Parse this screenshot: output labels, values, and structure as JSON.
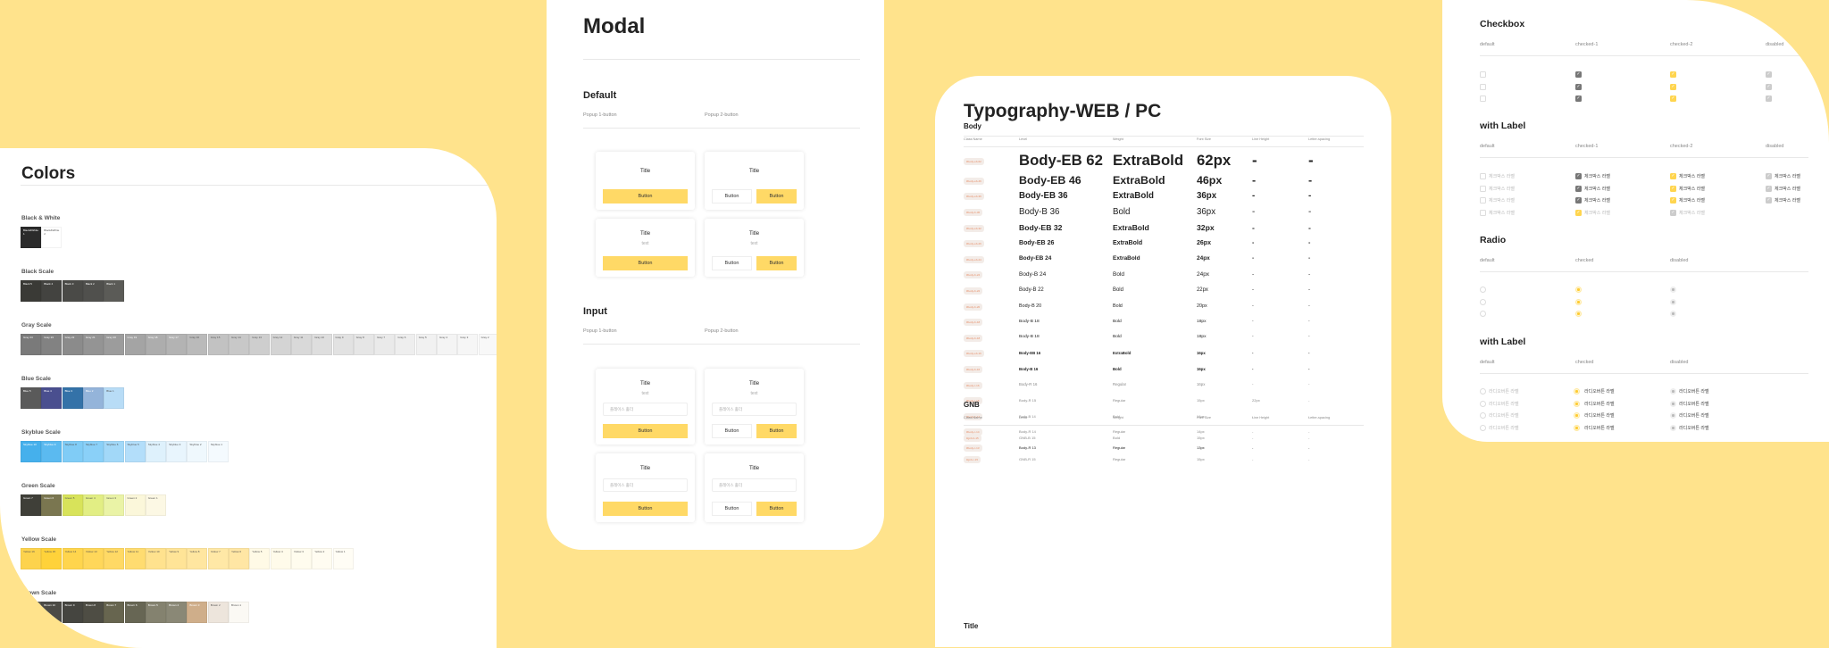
{
  "colors": {
    "title": "Colors",
    "sections": [
      {
        "name": "Black & White",
        "swatches": [
          {
            "label": "Black&White 1",
            "hex": "#2b2b2b"
          },
          {
            "label": "Black&White 2",
            "hex": "#ffffff"
          }
        ]
      },
      {
        "name": "Black Scale",
        "swatches": [
          {
            "label": "Black 5",
            "hex": "#3a3a36"
          },
          {
            "label": "Black 4",
            "hex": "#434340"
          },
          {
            "label": "Black 3",
            "hex": "#4a4a47"
          },
          {
            "label": "Black 2",
            "hex": "#50504d"
          },
          {
            "label": "Black 1",
            "hex": "#5b5b57"
          }
        ]
      },
      {
        "name": "Gray Scale",
        "swatches": [
          {
            "label": "Gray 24",
            "hex": "#7a7a7a"
          },
          {
            "label": "Gray 23",
            "hex": "#828282"
          },
          {
            "label": "Gray 22",
            "hex": "#8b8b8b"
          },
          {
            "label": "Gray 21",
            "hex": "#949494"
          },
          {
            "label": "Gray 20",
            "hex": "#9c9c9c"
          },
          {
            "label": "Gray 19",
            "hex": "#a4a4a4"
          },
          {
            "label": "Gray 18",
            "hex": "#adadad"
          },
          {
            "label": "Gray 17",
            "hex": "#b3b3b3"
          },
          {
            "label": "Gray 16",
            "hex": "#bababa"
          },
          {
            "label": "Gray 15",
            "hex": "#c2c2c2"
          },
          {
            "label": "Gray 14",
            "hex": "#c8c8c8"
          },
          {
            "label": "Gray 13",
            "hex": "#cecece"
          },
          {
            "label": "Gray 12",
            "hex": "#d4d4d4"
          },
          {
            "label": "Gray 11",
            "hex": "#d9d9d9"
          },
          {
            "label": "Gray 10",
            "hex": "#dedede"
          },
          {
            "label": "Gray 9",
            "hex": "#e2e2e2"
          },
          {
            "label": "Gray 8",
            "hex": "#e6e6e6"
          },
          {
            "label": "Gray 7",
            "hex": "#eaeaea"
          },
          {
            "label": "Gray 6",
            "hex": "#eeeeee"
          },
          {
            "label": "Gray 5",
            "hex": "#f1f1f1"
          },
          {
            "label": "Gray 4",
            "hex": "#f4f4f4"
          },
          {
            "label": "Gray 3",
            "hex": "#f6f6f6"
          },
          {
            "label": "Gray 2",
            "hex": "#f8f8f8"
          },
          {
            "label": "Gray 1",
            "hex": "#fafafa"
          }
        ]
      },
      {
        "name": "Blue Scale",
        "swatches": [
          {
            "label": "Blue 5",
            "hex": "#5a5a5a"
          },
          {
            "label": "Blue 4",
            "hex": "#4a4f8f"
          },
          {
            "label": "Blue 3",
            "hex": "#3472a8"
          },
          {
            "label": "Blue 2",
            "hex": "#94b4da"
          },
          {
            "label": "Blue 1",
            "hex": "#b8dcf6"
          }
        ]
      },
      {
        "name": "Skyblue Scale",
        "swatches": [
          {
            "label": "Skyblue 10",
            "hex": "#45b0ec"
          },
          {
            "label": "Skyblue 9",
            "hex": "#5bbaf0"
          },
          {
            "label": "Skyblue 8",
            "hex": "#80ccf6"
          },
          {
            "label": "Skyblue 7",
            "hex": "#8ad0f8"
          },
          {
            "label": "Skyblue 6",
            "hex": "#a2d8f8"
          },
          {
            "label": "Skyblue 5",
            "hex": "#b3defa"
          },
          {
            "label": "Skyblue 4",
            "hex": "#def1fc"
          },
          {
            "label": "Skyblue 3",
            "hex": "#e8f5fd"
          },
          {
            "label": "Skyblue 2",
            "hex": "#eff8fd"
          },
          {
            "label": "Skyblue 1",
            "hex": "#f4fafe"
          }
        ]
      },
      {
        "name": "Green Scale",
        "swatches": [
          {
            "label": "Green 7",
            "hex": "#3f3f38"
          },
          {
            "label": "Green 6",
            "hex": "#7a7650"
          },
          {
            "label": "Green 5",
            "hex": "#d8e35a"
          },
          {
            "label": "Green 4",
            "hex": "#e2ee84"
          },
          {
            "label": "Green 3",
            "hex": "#eaf3a6"
          },
          {
            "label": "Green 2",
            "hex": "#fbf7da"
          },
          {
            "label": "Green 1",
            "hex": "#fcf8e4"
          }
        ]
      },
      {
        "name": "Yellow Scale",
        "swatches": [
          {
            "label": "Yellow 16",
            "hex": "#fdd34d"
          },
          {
            "label": "Yellow 15",
            "hex": "#ffd23a"
          },
          {
            "label": "Yellow 14",
            "hex": "#ffd54d"
          },
          {
            "label": "Yellow 13",
            "hex": "#ffd75a"
          },
          {
            "label": "Yellow 12",
            "hex": "#ffd965"
          },
          {
            "label": "Yellow 11",
            "hex": "#ffdc70"
          },
          {
            "label": "Yellow 10",
            "hex": "#ffe28e"
          },
          {
            "label": "Yellow 9",
            "hex": "#ffe497"
          },
          {
            "label": "Yellow 8",
            "hex": "#ffe6a0"
          },
          {
            "label": "Yellow 7",
            "hex": "#ffe8a6"
          },
          {
            "label": "Yellow 6",
            "hex": "#ffe6a4"
          },
          {
            "label": "Yellow 5",
            "hex": "#fffae6"
          },
          {
            "label": "Yellow 4",
            "hex": "#fffbea"
          },
          {
            "label": "Yellow 3",
            "hex": "#fffcee"
          },
          {
            "label": "Yellow 2",
            "hex": "#fffcf1"
          },
          {
            "label": "Yellow 1",
            "hex": "#fffdf5"
          }
        ]
      },
      {
        "name": "Brown Scale",
        "swatches": [
          {
            "label": "Brown 11",
            "hex": "#5a5850"
          },
          {
            "label": "Brown 10",
            "hex": "#4c4b46"
          },
          {
            "label": "Brown 9",
            "hex": "#454540"
          },
          {
            "label": "Brown 8",
            "hex": "#4e4d44"
          },
          {
            "label": "Brown 7",
            "hex": "#67654f"
          },
          {
            "label": "Brown 6",
            "hex": "#676654"
          },
          {
            "label": "Brown 5",
            "hex": "#84826f"
          },
          {
            "label": "Brown 4",
            "hex": "#8a8876"
          },
          {
            "label": "Brown 3",
            "hex": "#cfae8a"
          },
          {
            "label": "Brown 2",
            "hex": "#ede5dc"
          },
          {
            "label": "Brown 1",
            "hex": "#fbf9f4"
          }
        ]
      }
    ]
  },
  "modal": {
    "title": "Modal",
    "sections": [
      {
        "name": "Default",
        "col1": "Popup 1-button",
        "col2": "Popup 2-button"
      },
      {
        "name": "Input",
        "col1": "Popup 1-button",
        "col2": "Popup 2-button"
      }
    ],
    "card_title": "Title",
    "card_text": "text",
    "button": "Button",
    "placeholder": "플레이스 홀더"
  },
  "typography": {
    "title": "Typography-WEB / PC",
    "headers": [
      "Class Name",
      "Level",
      "Weight",
      "Font Size",
      "Line Height",
      "Letter-spacing"
    ],
    "body": {
      "name": "Body",
      "rows": [
        {
          "cls": "#body-eb-62",
          "level": "Body-EB 62",
          "weight": "ExtraBold",
          "size": "62px",
          "lh": "-",
          "ls": "-",
          "bold": true
        },
        {
          "cls": "#body-eb-46",
          "level": "Body-EB 46",
          "weight": "ExtraBold",
          "size": "46px",
          "lh": "-",
          "ls": "-",
          "bold": true
        },
        {
          "cls": "#body-eb-36",
          "level": "Body-EB 36",
          "weight": "ExtraBold",
          "size": "36px",
          "lh": "-",
          "ls": "-",
          "bold": true
        },
        {
          "cls": "#body-b-36",
          "level": "Body-B 36",
          "weight": "Bold",
          "size": "36px",
          "lh": "-",
          "ls": "-",
          "bold": false
        },
        {
          "cls": "#body-eb-32",
          "level": "Body-EB 32",
          "weight": "ExtraBold",
          "size": "32px",
          "lh": "-",
          "ls": "-",
          "bold": true
        },
        {
          "cls": "#body-eb-26",
          "level": "Body-EB 26",
          "weight": "ExtraBold",
          "size": "26px",
          "lh": "-",
          "ls": "-",
          "bold": true
        },
        {
          "cls": "#body-eb-24",
          "level": "Body-EB 24",
          "weight": "ExtraBold",
          "size": "24px",
          "lh": "-",
          "ls": "-",
          "bold": true
        },
        {
          "cls": "#body-b-24",
          "level": "Body-B 24",
          "weight": "Bold",
          "size": "24px",
          "lh": "-",
          "ls": "-",
          "bold": false
        },
        {
          "cls": "#body-b-22",
          "level": "Body-B 22",
          "weight": "Bold",
          "size": "22px",
          "lh": "-",
          "ls": "-",
          "bold": false
        },
        {
          "cls": "#body-b-20",
          "level": "Body-B 20",
          "weight": "Bold",
          "size": "20px",
          "lh": "-",
          "ls": "-",
          "bold": false
        },
        {
          "cls": "#body-b-18",
          "level": "Body-B 18",
          "weight": "Bold",
          "size": "18px",
          "lh": "-",
          "ls": "-",
          "bold": false
        },
        {
          "cls": "#body-b-18",
          "level": "Body-B 18",
          "weight": "Bold",
          "size": "18px",
          "lh": "-",
          "ls": "-",
          "bold": false
        },
        {
          "cls": "#body-eb-16",
          "level": "Body-EB 16",
          "weight": "ExtraBold",
          "size": "16px",
          "lh": "-",
          "ls": "-",
          "bold": true
        },
        {
          "cls": "#body-b-16",
          "level": "Body-B 16",
          "weight": "Bold",
          "size": "16px",
          "lh": "-",
          "ls": "-",
          "bold": true
        },
        {
          "cls": "#body-r-16",
          "level": "Body-R 16",
          "weight": "Regular",
          "size": "16px",
          "lh": "-",
          "ls": "-",
          "bold": false
        },
        {
          "cls": "#body-r-15",
          "level": "Body-R 15",
          "weight": "Regular",
          "size": "15px",
          "lh": "22px",
          "ls": "-",
          "bold": false
        },
        {
          "cls": "#body-b-14",
          "level": "Body-B 14",
          "weight": "Bold",
          "size": "14px",
          "lh": "-",
          "ls": "-",
          "bold": false
        },
        {
          "cls": "#body-r-14",
          "level": "Body-R 14",
          "weight": "Regular",
          "size": "14px",
          "lh": "-",
          "ls": "-",
          "bold": false
        },
        {
          "cls": "#body-r-13",
          "level": "Body-R 13",
          "weight": "Regular",
          "size": "13px",
          "lh": "-",
          "ls": "-",
          "bold": false
        }
      ]
    },
    "gnb": {
      "name": "GNB",
      "rows": [
        {
          "cls": "#gnb-b-15",
          "level": "GNB-B 15",
          "weight": "Bold",
          "size": "15px",
          "lh": "-",
          "ls": "-",
          "bold": false
        },
        {
          "cls": "#gnb-r-15",
          "level": "GNB-R 15",
          "weight": "Regular",
          "size": "15px",
          "lh": "-",
          "ls": "-",
          "bold": false
        }
      ]
    },
    "next_section": "Title"
  },
  "controls": {
    "checkbox": {
      "title": "Checkbox",
      "headers": [
        "default",
        "checked-1",
        "checked-2",
        "disabled"
      ]
    },
    "checkbox_label": {
      "title": "with Label",
      "headers": [
        "default",
        "checked-1",
        "checked-2",
        "disabled"
      ],
      "label": "체크박스 라벨"
    },
    "radio": {
      "title": "Radio",
      "headers": [
        "default",
        "checked",
        "disabled"
      ]
    },
    "radio_label": {
      "title": "with Label",
      "headers": [
        "default",
        "checked",
        "disabled"
      ],
      "label": "라디오버튼 라벨"
    }
  },
  "accent": "#ffd966",
  "background": "#ffe38c"
}
